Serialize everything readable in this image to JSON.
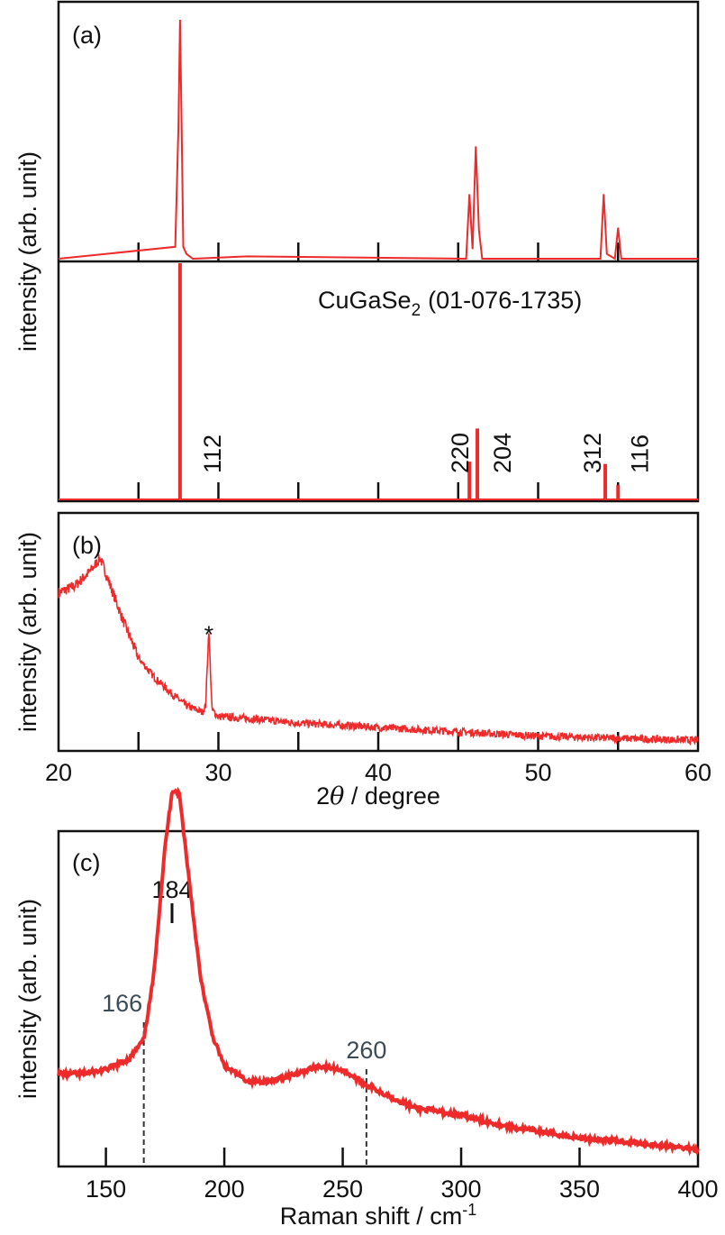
{
  "chart_data": [
    {
      "panel": "(a)",
      "type": "line",
      "ylabel": "intensity (arb. unit)",
      "xlim": [
        20,
        60
      ],
      "grid": false,
      "subplots": [
        {
          "name": "",
          "kind": "pattern",
          "series": [
            {
              "name": "",
              "x": [
                20.0,
                27.3,
                27.5,
                27.6,
                27.7,
                27.8,
                28.0,
                28.4,
                31.8,
                45.5,
                45.7,
                45.9,
                46.1,
                46.3,
                46.5,
                53.9,
                54.1,
                54.3,
                54.8,
                55.0,
                55.2,
                60.0
              ],
              "values": [
                0.0,
                0.05,
                0.55,
                1.0,
                0.55,
                0.05,
                0.02,
                0.0,
                0.01,
                0.0,
                0.27,
                0.04,
                0.47,
                0.12,
                0.0,
                0.0,
                0.27,
                0.02,
                0.0,
                0.13,
                0.0,
                0.0
              ]
            }
          ]
        },
        {
          "name": "",
          "kind": "reference",
          "reference_label_main": "CuGaSe",
          "reference_label_sub": "2",
          "reference_label_pdf": "(01-076-1735)",
          "peaks": [
            {
              "x": 27.6,
              "value": 1.0,
              "hkl": "112"
            },
            {
              "x": 45.7,
              "value": 0.16,
              "hkl": "220"
            },
            {
              "x": 46.2,
              "value": 0.3,
              "hkl": "204"
            },
            {
              "x": 54.2,
              "value": 0.15,
              "hkl": "312"
            },
            {
              "x": 55.0,
              "value": 0.06,
              "hkl": "116"
            }
          ]
        }
      ]
    },
    {
      "panel": "(b)",
      "type": "line",
      "xlabel_prefix": "2",
      "xlabel_theta": "θ",
      "xlabel_suffix": " / degree",
      "ylabel": "intensity (arb. unit)",
      "xlim": [
        20,
        60
      ],
      "xticks": [
        20,
        30,
        40,
        50,
        60
      ],
      "minor_xticks": [
        25,
        35,
        45,
        55
      ],
      "grid": false,
      "noisy": true,
      "annotation": {
        "text": "*",
        "x": 29.4
      },
      "series": [
        {
          "name": "",
          "x": [
            20,
            21,
            22,
            22.6,
            23,
            24,
            25,
            26,
            27,
            28,
            29,
            29.2,
            29.4,
            29.6,
            30,
            32,
            35,
            40,
            45,
            50,
            55,
            60
          ],
          "values": [
            0.72,
            0.75,
            0.82,
            0.88,
            0.8,
            0.6,
            0.42,
            0.33,
            0.26,
            0.2,
            0.17,
            0.2,
            0.55,
            0.18,
            0.15,
            0.14,
            0.12,
            0.1,
            0.08,
            0.06,
            0.05,
            0.04
          ]
        }
      ]
    },
    {
      "panel": "(c)",
      "type": "line",
      "xlabel_main": "Raman shift / cm",
      "xlabel_sup": "-1",
      "ylabel": "intensity (arb. unit)",
      "xlim": [
        130,
        400
      ],
      "xticks": [
        150,
        200,
        250,
        300,
        350,
        400
      ],
      "grid": false,
      "annotations": [
        {
          "text": "184",
          "x": 184,
          "style": "solid"
        },
        {
          "text": "166",
          "x": 166,
          "style": "dashed"
        },
        {
          "text": "260",
          "x": 260,
          "style": "dashed"
        }
      ],
      "series": [
        {
          "name": "",
          "x": [
            130,
            140,
            150,
            160,
            166,
            170,
            175,
            178,
            181,
            185,
            190,
            195,
            200,
            210,
            220,
            230,
            240,
            250,
            260,
            270,
            280,
            300,
            320,
            350,
            370,
            400
          ],
          "values": [
            0.2,
            0.2,
            0.21,
            0.24,
            0.29,
            0.45,
            0.8,
            0.95,
            0.94,
            0.72,
            0.45,
            0.3,
            0.22,
            0.18,
            0.18,
            0.2,
            0.22,
            0.21,
            0.17,
            0.14,
            0.11,
            0.09,
            0.06,
            0.03,
            0.02,
            0.0
          ]
        }
      ]
    }
  ]
}
